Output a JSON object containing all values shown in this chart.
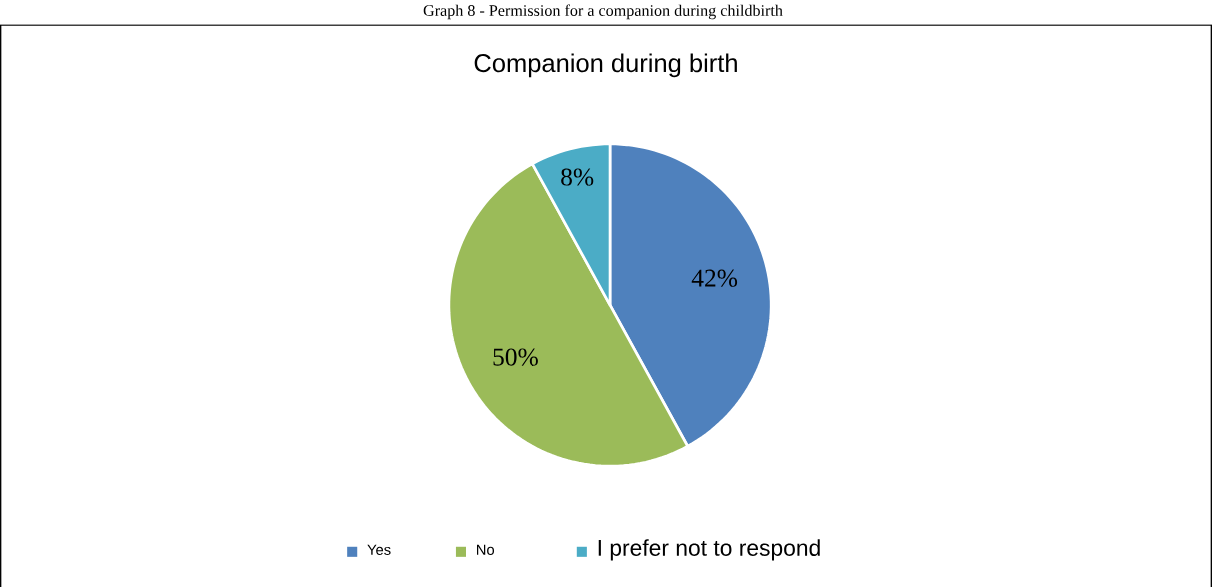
{
  "chart_data": {
    "type": "pie",
    "title": "Companion during birth",
    "annotations": [
      "Graph 8 - Permission for a companion during childbirth"
    ],
    "categories": [
      "Yes",
      "No",
      "I prefer not to respond"
    ],
    "values": [
      42,
      50,
      8
    ],
    "colors": [
      "#4f81bd",
      "#9bbb59",
      "#4bacc6"
    ],
    "value_labels": [
      "42%",
      "50%",
      "8%"
    ],
    "legend": "bottom"
  }
}
